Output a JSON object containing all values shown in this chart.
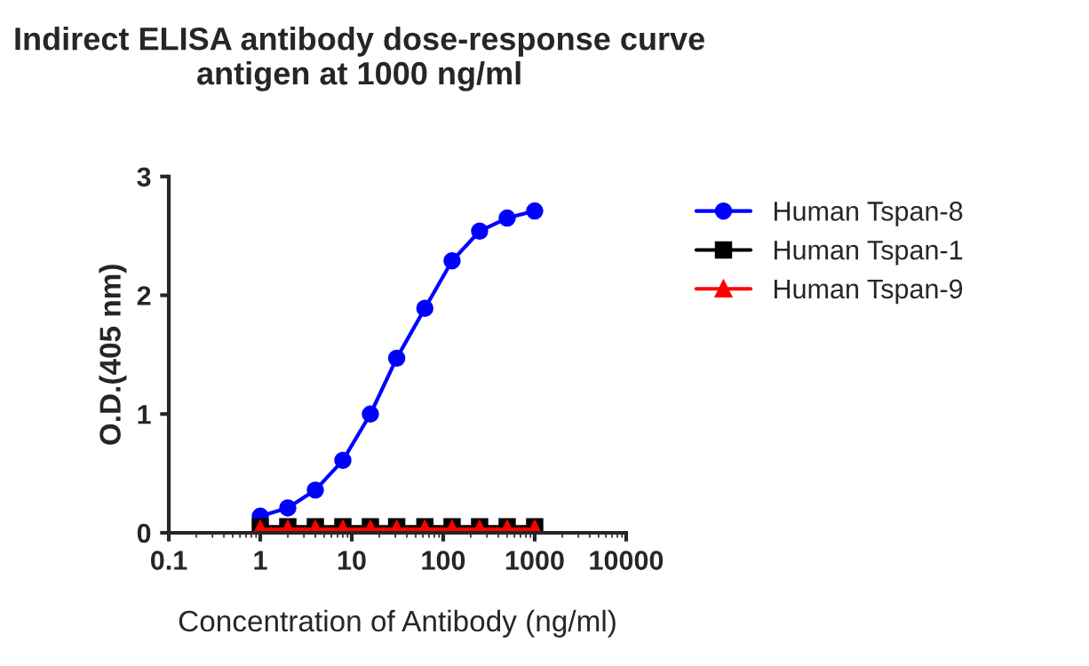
{
  "chart_data": {
    "type": "line",
    "title": "Indirect ELISA antibody dose-response curve\nantigen at 1000 ng/ml",
    "xlabel": "Concentration of Antibody (ng/ml)",
    "ylabel": "O.D.(405 nm)",
    "x": [
      1,
      2,
      4,
      8,
      16,
      31,
      63,
      125,
      250,
      500,
      1000
    ],
    "series": [
      {
        "name": "Human Tspan-8",
        "color": "#0000ff",
        "marker": "circle",
        "values": [
          0.14,
          0.21,
          0.36,
          0.61,
          1.0,
          1.47,
          1.89,
          2.29,
          2.54,
          2.65,
          2.71
        ]
      },
      {
        "name": "Human Tspan-1",
        "color": "#000000",
        "marker": "square",
        "values": [
          0.05,
          0.05,
          0.05,
          0.05,
          0.05,
          0.05,
          0.05,
          0.05,
          0.05,
          0.05,
          0.05
        ]
      },
      {
        "name": "Human Tspan-9",
        "color": "#ff0000",
        "marker": "triangle",
        "values": [
          0.03,
          0.03,
          0.03,
          0.03,
          0.03,
          0.03,
          0.03,
          0.03,
          0.03,
          0.03,
          0.03
        ]
      }
    ],
    "log": "x",
    "xlim": [
      0.1,
      10000
    ],
    "xticks": [
      0.1,
      1,
      10,
      100,
      1000,
      10000
    ],
    "ylim": [
      0,
      3
    ],
    "yticks": [
      0,
      1,
      2,
      3
    ],
    "grid": false,
    "legend": "right"
  }
}
